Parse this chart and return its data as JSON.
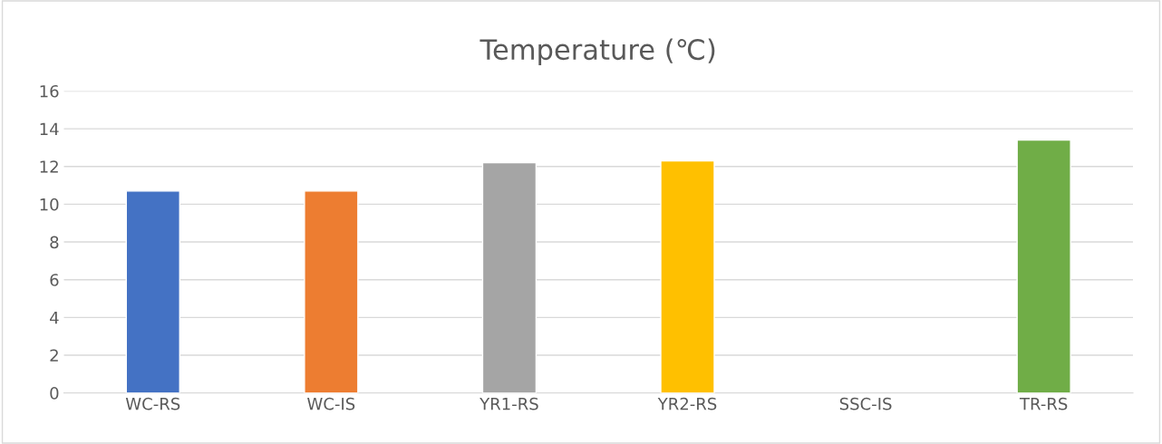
{
  "chart_data": {
    "type": "bar",
    "title": "Temperature (℃)",
    "categories": [
      "WC-RS",
      "WC-IS",
      "YR1-RS",
      "YR2-RS",
      "SSC-IS",
      "TR-RS"
    ],
    "values": [
      10.7,
      10.7,
      12.2,
      12.3,
      null,
      13.4
    ],
    "colors": [
      "#4472c4",
      "#ed7d31",
      "#a5a5a5",
      "#ffc000",
      "#5b9bd5",
      "#70ad47"
    ],
    "ylim": [
      0,
      16
    ],
    "yticks": [
      0,
      2,
      4,
      6,
      8,
      10,
      12,
      14,
      16
    ],
    "grid": "y"
  }
}
